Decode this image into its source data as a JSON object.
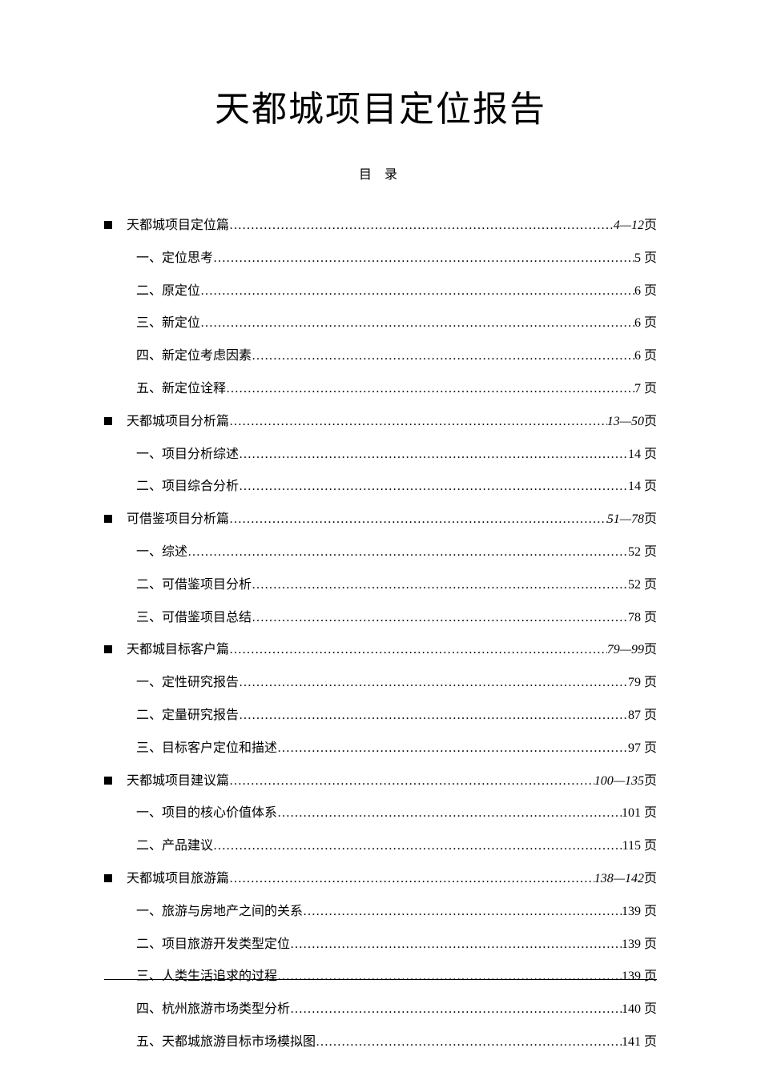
{
  "title": "天都城项目定位报告",
  "subtitle": "目 录",
  "page_suffix": "页",
  "dots_char": "…",
  "sections": [
    {
      "label": "天都城项目定位篇",
      "range": "4—12",
      "items": [
        {
          "label": "一、定位思考",
          "page": "5"
        },
        {
          "label": "二、原定位",
          "page": "6"
        },
        {
          "label": "三、新定位",
          "page": "6"
        },
        {
          "label": "四、新定位考虑因素",
          "page": "6"
        },
        {
          "label": "五、新定位诠释",
          "page": "7"
        }
      ]
    },
    {
      "label": "天都城项目分析篇",
      "range": "13—50",
      "items": [
        {
          "label": "一、项目分析综述",
          "page": "14"
        },
        {
          "label": "二、项目综合分析",
          "page": "14"
        }
      ]
    },
    {
      "label": "可借鉴项目分析篇",
      "range": "51—78",
      "items": [
        {
          "label": "一、综述",
          "page": "52"
        },
        {
          "label": "二、可借鉴项目分析",
          "page": "52"
        },
        {
          "label": "三、可借鉴项目总结",
          "page": "78"
        }
      ]
    },
    {
      "label": "天都城目标客户篇",
      "range": "79—99",
      "items": [
        {
          "label": "一、定性研究报告",
          "page": "79"
        },
        {
          "label": "二、定量研究报告",
          "page": "87"
        },
        {
          "label": "三、目标客户定位和描述",
          "page": "97"
        }
      ]
    },
    {
      "label": "天都城项目建议篇",
      "range": "100—135",
      "items": [
        {
          "label": "一、项目的核心价值体系",
          "page": "101"
        },
        {
          "label": "二、产品建议",
          "page": "115"
        }
      ]
    },
    {
      "label": "天都城项目旅游篇",
      "range": "138—142",
      "items": [
        {
          "label": "一、旅游与房地产之间的关系",
          "page": "139"
        },
        {
          "label": "二、项目旅游开发类型定位",
          "page": "139"
        },
        {
          "label": "三、人类生活追求的过程",
          "page": "139"
        },
        {
          "label": "四、杭州旅游市场类型分析",
          "page": "140"
        },
        {
          "label": "五、天都城旅游目标市场模拟图",
          "page": "141"
        }
      ]
    }
  ]
}
